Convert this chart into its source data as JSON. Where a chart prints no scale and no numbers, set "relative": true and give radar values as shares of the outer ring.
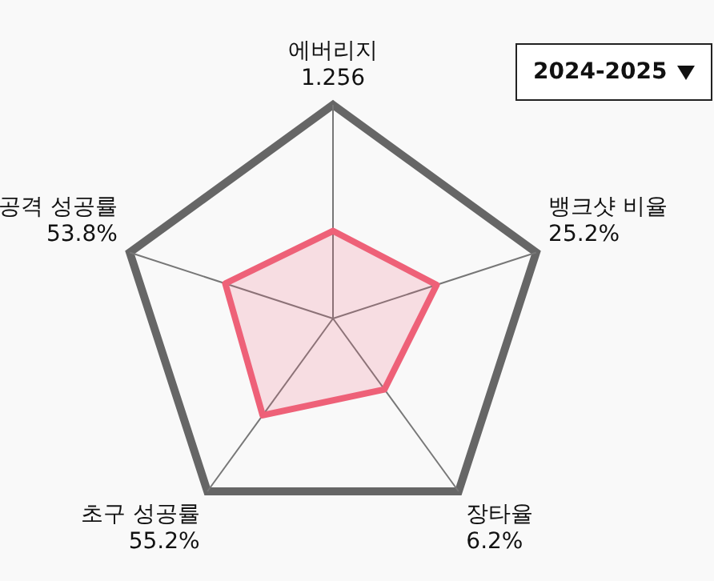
{
  "chart_data": {
    "type": "radar",
    "relative": true,
    "categories": [
      "에버리지\n1.256",
      "뱅크샷 비율\n25.2%",
      "장타율\n6.2%",
      "초구 성공률\n55.2%",
      "공격 성공률\n53.8%"
    ],
    "series": [
      {
        "color": "#ee6178",
        "values": [
          0.41,
          0.51,
          0.41,
          0.56,
          0.53
        ]
      }
    ],
    "marker": "none",
    "legend": false,
    "annotations": [
      "2024-2025"
    ]
  }
}
